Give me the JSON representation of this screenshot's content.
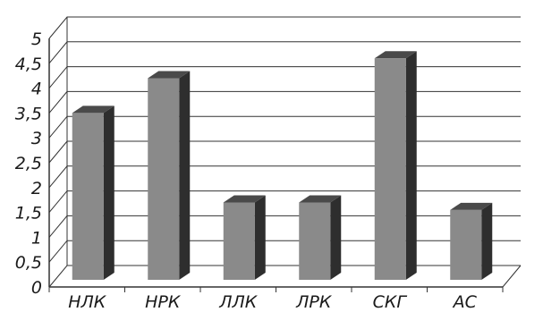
{
  "chart_data": {
    "type": "bar",
    "style": "3d-column",
    "title": "",
    "xlabel": "",
    "ylabel": "",
    "categories": [
      "НЛК",
      "НРК",
      "ЛЛК",
      "ЛРК",
      "СКГ",
      "АС"
    ],
    "values": [
      3.5,
      4.2,
      1.7,
      1.7,
      4.6,
      1.55
    ],
    "ylim": [
      0,
      5
    ],
    "yticks": [
      "0",
      "0,5",
      "1",
      "1,5",
      "2",
      "2,5",
      "3",
      "3,5",
      "4",
      "4,5",
      "5"
    ],
    "grid": true,
    "legend": "none",
    "colors": {
      "bar_front": "#8a8a8a",
      "bar_side": "#2e2e2e",
      "bar_top": "#4a4a4a",
      "grid": "#333333",
      "text": "#1a1a1a"
    }
  }
}
